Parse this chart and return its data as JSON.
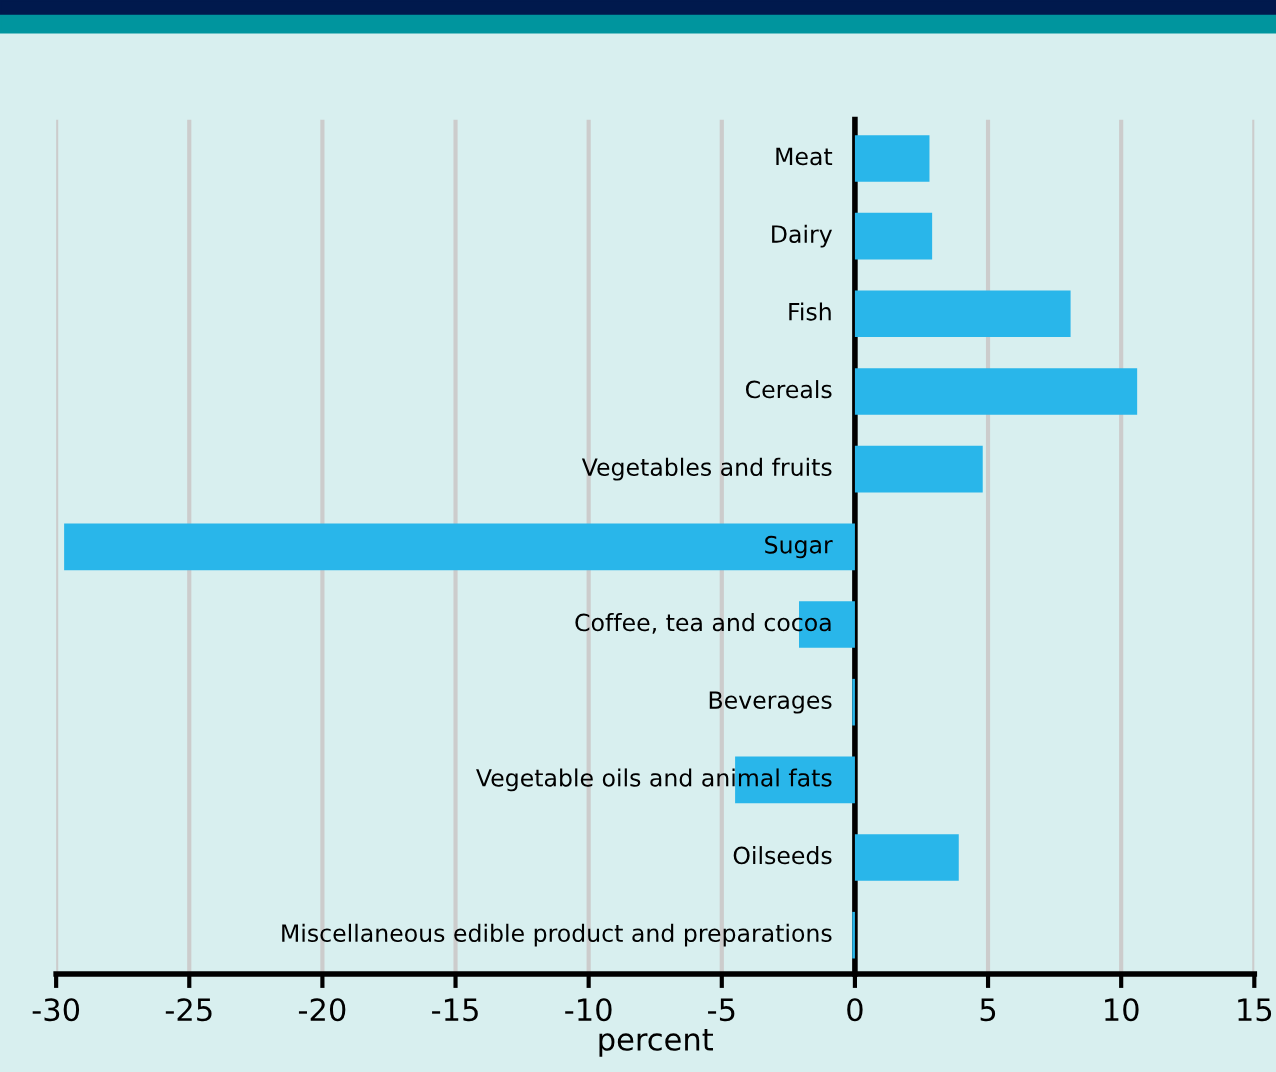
{
  "chart_data": {
    "type": "bar",
    "orientation": "horizontal",
    "xlabel": "percent",
    "categories": [
      "Meat",
      "Dairy",
      "Fish",
      "Cereals",
      "Vegetables and fruits",
      "Sugar",
      "Coffee, tea and cocoa",
      "Beverages",
      "Vegetable oils and animal fats",
      "Oilseeds",
      "Miscellaneous edible product and preparations"
    ],
    "values": [
      2.8,
      2.9,
      8.1,
      10.6,
      4.8,
      -29.7,
      -2.1,
      -0.1,
      -4.5,
      3.9,
      -0.1
    ],
    "color": "#29b6ea",
    "xlim": [
      -30,
      15
    ],
    "xticks": [
      -30,
      -25,
      -20,
      -15,
      -10,
      -5,
      0,
      5,
      10,
      15
    ],
    "grid": "x"
  }
}
